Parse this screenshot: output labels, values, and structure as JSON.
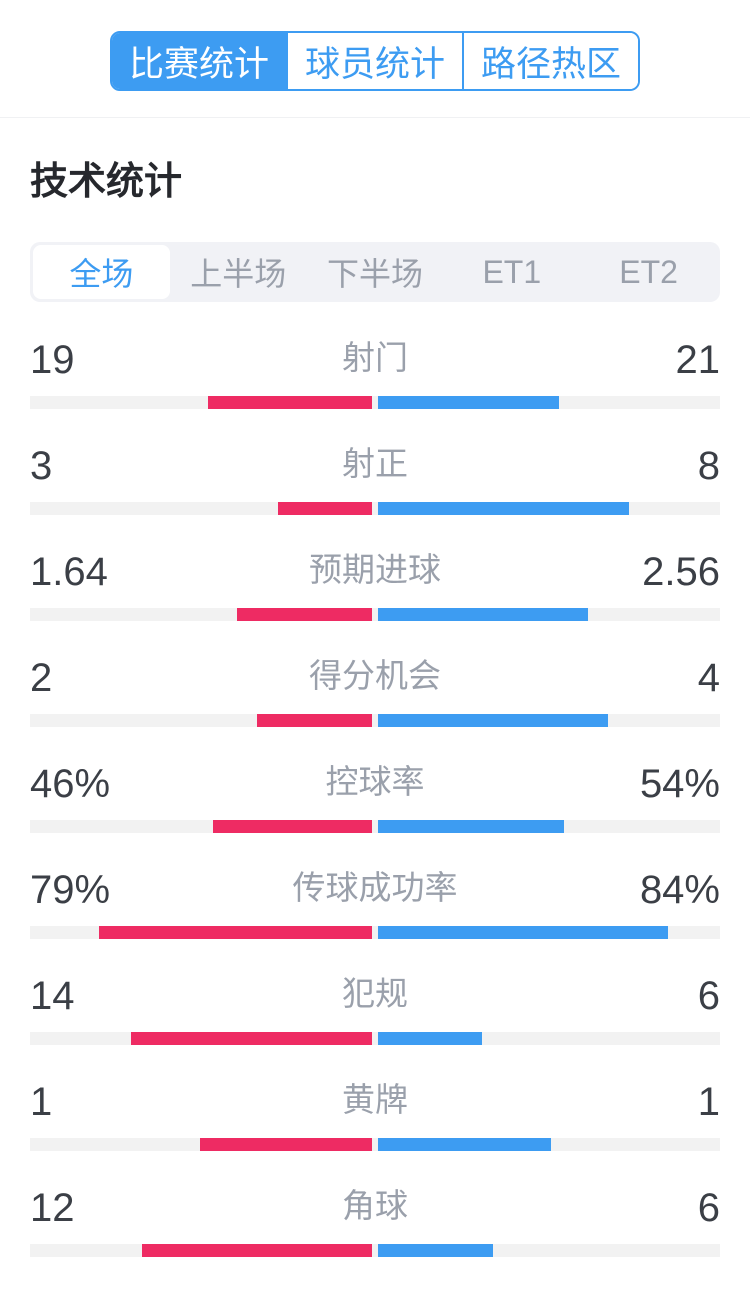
{
  "title": "技术统计",
  "colors": {
    "accent_blue": "#3d9cf2",
    "home_red": "#ee2b63",
    "bar_track": "#f2f2f2",
    "muted_text": "#9aa0ab"
  },
  "top_tabs": [
    {
      "label": "比赛统计",
      "selected": true
    },
    {
      "label": "球员统计",
      "selected": false
    },
    {
      "label": "路径热区",
      "selected": false
    }
  ],
  "period_tabs": [
    {
      "label": "全场",
      "selected": true
    },
    {
      "label": "上半场",
      "selected": false
    },
    {
      "label": "下半场",
      "selected": false
    },
    {
      "label": "ET1",
      "selected": false
    },
    {
      "label": "ET2",
      "selected": false
    }
  ],
  "stats": {
    "home_color": "#ee2b63",
    "away_color": "#3d9cf2",
    "rows": [
      {
        "label": "射门",
        "home": "19",
        "away": "21",
        "home_pct": 23.75,
        "away_pct": 26.25
      },
      {
        "label": "射正",
        "home": "3",
        "away": "8",
        "home_pct": 13.6,
        "away_pct": 36.4
      },
      {
        "label": "预期进球",
        "home": "1.64",
        "away": "2.56",
        "home_pct": 19.5,
        "away_pct": 30.5
      },
      {
        "label": "得分机会",
        "home": "2",
        "away": "4",
        "home_pct": 16.7,
        "away_pct": 33.3
      },
      {
        "label": "控球率",
        "home": "46%",
        "away": "54%",
        "home_pct": 23.0,
        "away_pct": 27.0
      },
      {
        "label": "传球成功率",
        "home": "79%",
        "away": "84%",
        "home_pct": 39.5,
        "away_pct": 42.0
      },
      {
        "label": "犯规",
        "home": "14",
        "away": "6",
        "home_pct": 35.0,
        "away_pct": 15.0
      },
      {
        "label": "黄牌",
        "home": "1",
        "away": "1",
        "home_pct": 25.0,
        "away_pct": 25.0
      },
      {
        "label": "角球",
        "home": "12",
        "away": "6",
        "home_pct": 33.3,
        "away_pct": 16.7
      }
    ]
  }
}
